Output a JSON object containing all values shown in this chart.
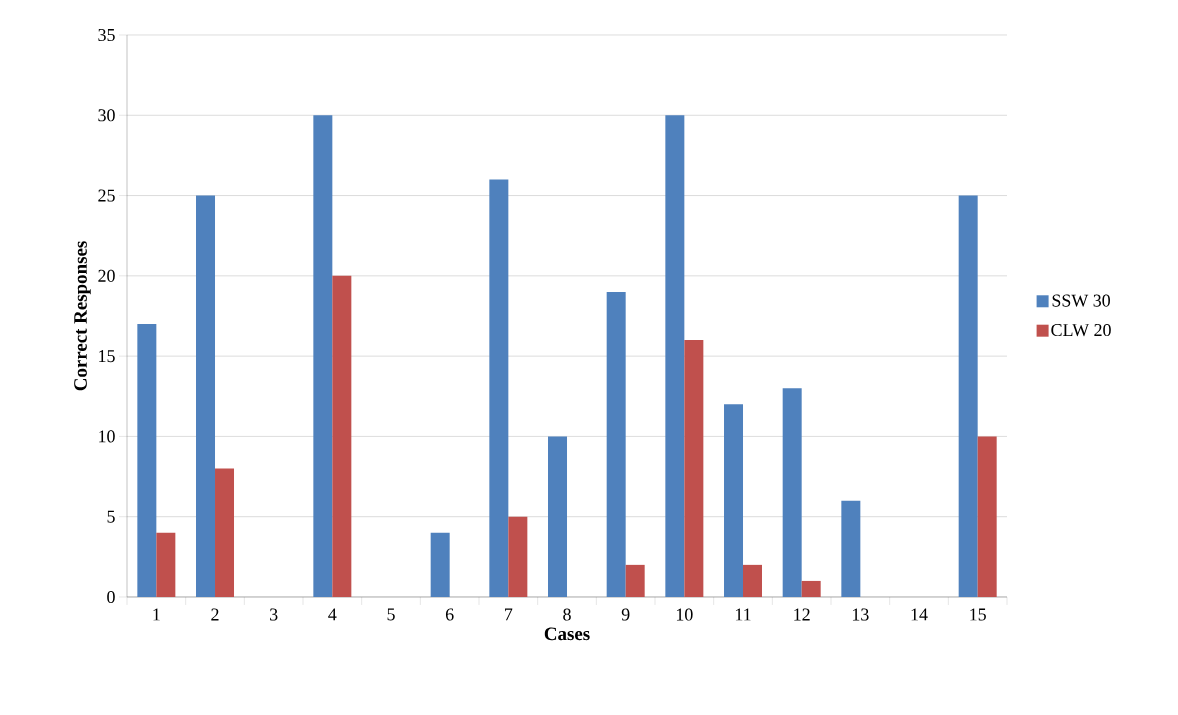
{
  "chart_data": {
    "type": "bar",
    "xlabel": "Cases",
    "ylabel": "Correct Responses",
    "categories": [
      "1",
      "2",
      "3",
      "4",
      "5",
      "6",
      "7",
      "8",
      "9",
      "10",
      "11",
      "12",
      "13",
      "14",
      "15"
    ],
    "series": [
      {
        "name": "SSW 30",
        "color": "#4f81bd",
        "values": [
          17,
          25,
          0,
          30,
          0,
          4,
          26,
          10,
          19,
          30,
          12,
          13,
          6,
          0,
          25
        ]
      },
      {
        "name": "CLW 20",
        "color": "#c0504d",
        "values": [
          4,
          8,
          0,
          20,
          0,
          0,
          5,
          0,
          2,
          16,
          2,
          1,
          0,
          0,
          10
        ]
      }
    ],
    "ylim": [
      0,
      35
    ],
    "yticks": [
      0,
      5,
      10,
      15,
      20,
      25,
      30,
      35
    ],
    "grid": "y",
    "legend": "right"
  }
}
